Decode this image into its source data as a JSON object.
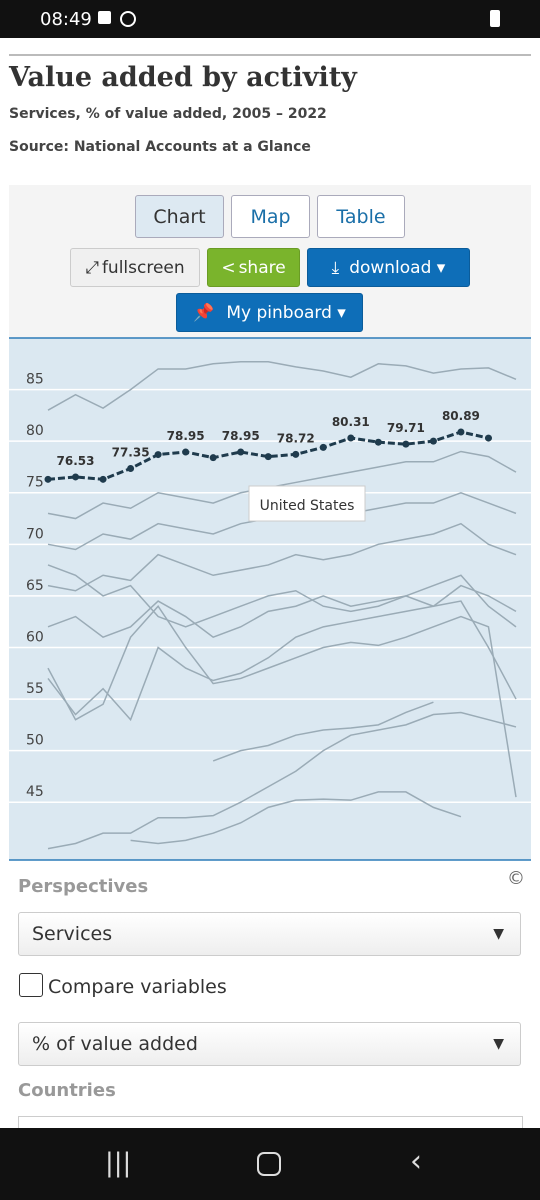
{
  "status": {
    "time": "08:49"
  },
  "header": {
    "title": "Value added by activity",
    "subtitle": "Services, % of value added, 2005 – 2022",
    "source": "Source: National Accounts at a Glance"
  },
  "tabs": [
    "Chart",
    "Map",
    "Table"
  ],
  "actions": {
    "fullscreen": "fullscreen",
    "share": "share",
    "download": "download ▾",
    "pinboard": "My pinboard ▾"
  },
  "chart_data": {
    "type": "line",
    "ylim": [
      39.4,
      90
    ],
    "yticks": [
      45,
      50,
      55,
      60,
      65,
      70,
      75,
      80,
      85
    ],
    "grid": true,
    "tooltip": "United States",
    "series": [
      {
        "color": "#9aabb6",
        "values": [
          83,
          84.5,
          83.2,
          85,
          87,
          87,
          87.5,
          87.7,
          87.7,
          87.2,
          86.8,
          86.2,
          87.5,
          87.3,
          86.6,
          87,
          87.1,
          86
        ]
      },
      {
        "color": "#9aabb6",
        "values": [
          40.5,
          41,
          42,
          42,
          43.5,
          43.5,
          43.7,
          45,
          46.5,
          48,
          50,
          51.5,
          52,
          52.5,
          53.5,
          53.7,
          53,
          52.3
        ]
      },
      {
        "color": "#9aabb6",
        "values": [
          null,
          null,
          null,
          41.3,
          41,
          41.3,
          42,
          43,
          44.5,
          45.2,
          45.3,
          45.2,
          46,
          46,
          44.5,
          43.6,
          null,
          null
        ]
      },
      {
        "color": "#9aabb6",
        "values": [
          null,
          null,
          null,
          null,
          null,
          null,
          49,
          50,
          50.5,
          51.5,
          52,
          52.2,
          52.5,
          53.7,
          54.7,
          null,
          null,
          null
        ]
      },
      {
        "color": "#9aabb6",
        "values": [
          58,
          53,
          54.5,
          61,
          64,
          60,
          56.5,
          57,
          58,
          59,
          60,
          60.5,
          60.2,
          61,
          62,
          63,
          62,
          45.5
        ]
      },
      {
        "color": "#9aabb6",
        "values": [
          57,
          53.5,
          56,
          53,
          60,
          58,
          56.8,
          57.5,
          59,
          61,
          62,
          62.5,
          63,
          63.5,
          64,
          64.5,
          60,
          55
        ]
      },
      {
        "color": "#9aabb6",
        "values": [
          62,
          63,
          61,
          62,
          64.5,
          63,
          61,
          62,
          63.5,
          64,
          65,
          64,
          64.5,
          65,
          66,
          67,
          64,
          62
        ]
      },
      {
        "color": "#9aabb6",
        "values": [
          66,
          65.5,
          67,
          66.5,
          69,
          68,
          67,
          67.5,
          68,
          69,
          68.5,
          69,
          70,
          70.5,
          71,
          72,
          70,
          69
        ]
      },
      {
        "color": "#9aabb6",
        "values": [
          70,
          69.5,
          71,
          70.5,
          72,
          71.5,
          71,
          72,
          72.5,
          73,
          72.5,
          73,
          73.5,
          74,
          74,
          75,
          74,
          73
        ]
      },
      {
        "color": "#9aabb6",
        "values": [
          73,
          72.5,
          74,
          73.5,
          75,
          74.5,
          74,
          75,
          75.5,
          76,
          76.5,
          77,
          77.5,
          78,
          78,
          79,
          78.5,
          77
        ]
      },
      {
        "color": "#9aabb6",
        "values": [
          68,
          67,
          65,
          66,
          63,
          62,
          63,
          64,
          65,
          65.5,
          64,
          63.5,
          64,
          65,
          64,
          66,
          65,
          63.5
        ]
      },
      {
        "color": "#1f3b4d",
        "values": [
          76.3,
          76.53,
          76.3,
          77.35,
          78.7,
          78.95,
          78.4,
          78.95,
          78.5,
          78.72,
          79.4,
          80.31,
          79.9,
          79.71,
          80,
          80.89,
          80.3,
          null
        ],
        "value_labels": [
          null,
          "76.53",
          null,
          "77.35",
          null,
          "78.95",
          null,
          "78.95",
          null,
          "78.72",
          null,
          "80.31",
          null,
          "79.71",
          null,
          "80.89",
          null,
          null
        ]
      }
    ]
  },
  "panel": {
    "perspectives": "Perspectives",
    "perspective_value": "Services",
    "compare": "Compare variables",
    "measure_value": "% of value added",
    "countries": "Countries"
  }
}
